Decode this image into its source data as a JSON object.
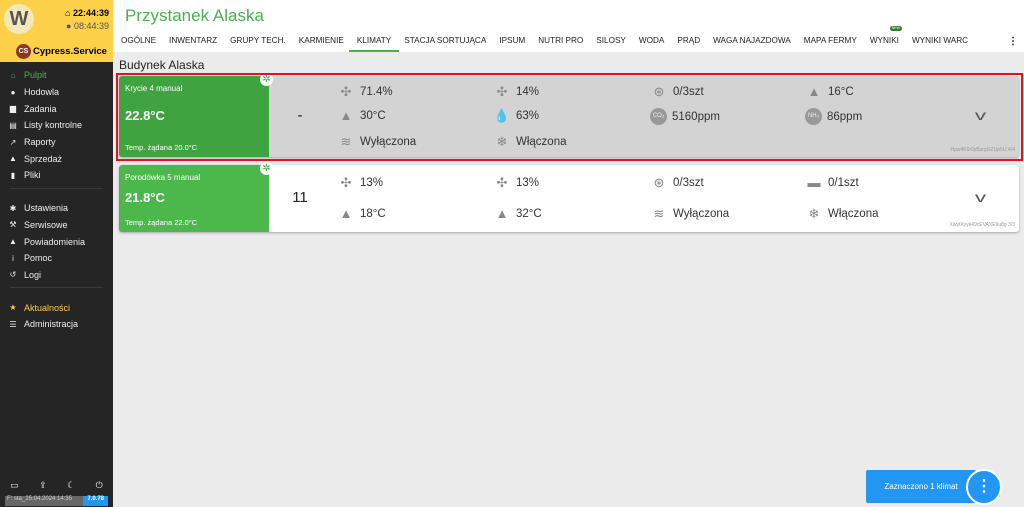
{
  "sidebar": {
    "logo": "W",
    "time1": "22:44:39",
    "time2": "08:44:39",
    "user_initials": "CS",
    "user": "Cypress.Service",
    "items": [
      {
        "label": "Pulpit",
        "icon": "home-icon",
        "g": "⌂",
        "c": "#4caf50"
      },
      {
        "label": "Hodowla",
        "icon": "pig-icon",
        "g": "●"
      },
      {
        "label": "Zadania",
        "icon": "calendar-icon",
        "g": "▆"
      },
      {
        "label": "Listy kontrolne",
        "icon": "list-icon",
        "g": "▤"
      },
      {
        "label": "Raporty",
        "icon": "chart-icon",
        "g": "↗"
      },
      {
        "label": "Sprzedaż",
        "icon": "money-bag-icon",
        "g": "▲"
      },
      {
        "label": "Pliki",
        "icon": "file-icon",
        "g": "▮"
      }
    ],
    "items2": [
      {
        "label": "Ustawienia",
        "icon": "gear-icon",
        "g": "✱"
      },
      {
        "label": "Serwisowe",
        "icon": "wrench-icon",
        "g": "⚒"
      },
      {
        "label": "Powiadomienia",
        "icon": "bell-icon",
        "g": "▲"
      },
      {
        "label": "Pomoc",
        "icon": "info-icon",
        "g": "i"
      },
      {
        "label": "Logi",
        "icon": "history-icon",
        "g": "↺"
      }
    ],
    "items3": [
      {
        "label": "Aktualności",
        "icon": "star-icon",
        "g": "★",
        "c": "#fdd04a"
      },
      {
        "label": "Administracja",
        "icon": "list-icon",
        "g": "☰"
      }
    ],
    "footer_info": "F: sta_25.04.2024 14:35",
    "version": "7.0.78"
  },
  "header": {
    "title": "Przystanek Alaska",
    "tabs": [
      "OGÓLNE",
      "INWENTARZ",
      "GRUPY TECH.",
      "KARMIENIE",
      "KLIMATY",
      "STACJA SORTUJĄCA",
      "IPSUM",
      "NUTRI PRO",
      "SILOSY",
      "WODA",
      "PRĄD",
      "WAGA NAJAZDOWA",
      "MAPA FERMY",
      "WYNIKI",
      "WYNIKI WARC"
    ],
    "active_tab": "KLIMATY",
    "new_badge": "NEW"
  },
  "building": "Budynek Alaska",
  "cards": [
    {
      "name": "Krycie 4 manual",
      "temp": "22.8°C",
      "req": "Temp. żądana 20.0°C",
      "mid": "-",
      "selected": true,
      "id": "Hpw4K6r0yBzrgGZUp5IJ 4/4",
      "items": [
        {
          "icon": "fan-icon",
          "g": "✣",
          "v": "71.4%"
        },
        {
          "icon": "fan-min-icon",
          "g": "✣",
          "v": "14%"
        },
        {
          "icon": "fan-circle-icon",
          "g": "⊛",
          "v": "0/3szt"
        },
        {
          "icon": "bell-min-icon",
          "g": "▲",
          "v": "16°C"
        },
        {
          "icon": "bell-max-icon",
          "g": "▲",
          "v": "30°C"
        },
        {
          "icon": "humidity-icon",
          "g": "💧",
          "v": "63%"
        },
        {
          "icon": "co2-icon",
          "ci": "CO₂",
          "v": "5160ppm"
        },
        {
          "icon": "nh3-icon",
          "ci": "NH₃",
          "v": "86ppm"
        },
        {
          "icon": "heater-icon",
          "g": "≋",
          "v": "Wyłączona"
        },
        {
          "icon": "snowflake-icon",
          "g": "❄",
          "v": "Włączona"
        }
      ]
    },
    {
      "name": "Porodówka 5 manual",
      "temp": "21.8°C",
      "req": "Temp. żądana 22.0°C",
      "mid": "11",
      "selected": false,
      "id": "XwytXyyk49cEVAXE9u8g 3/3",
      "items": [
        {
          "icon": "fan-icon",
          "g": "✣",
          "v": "13%"
        },
        {
          "icon": "fan-min-icon",
          "g": "✣",
          "v": "13%"
        },
        {
          "icon": "fan-circle-icon",
          "g": "⊛",
          "v": "0/3szt"
        },
        {
          "icon": "device-icon",
          "g": "▬",
          "v": "0/1szt"
        },
        {
          "icon": "bell-min-icon",
          "g": "▲",
          "v": "18°C"
        },
        {
          "icon": "bell-max-icon",
          "g": "▲",
          "v": "32°C"
        },
        {
          "icon": "heater-icon",
          "g": "≋",
          "v": "Wyłączona"
        },
        {
          "icon": "snowflake-icon",
          "g": "❄",
          "v": "Włączona"
        }
      ]
    }
  ],
  "fab": {
    "label": "Zaznaczono 1 klimat",
    "more": "⋮"
  }
}
